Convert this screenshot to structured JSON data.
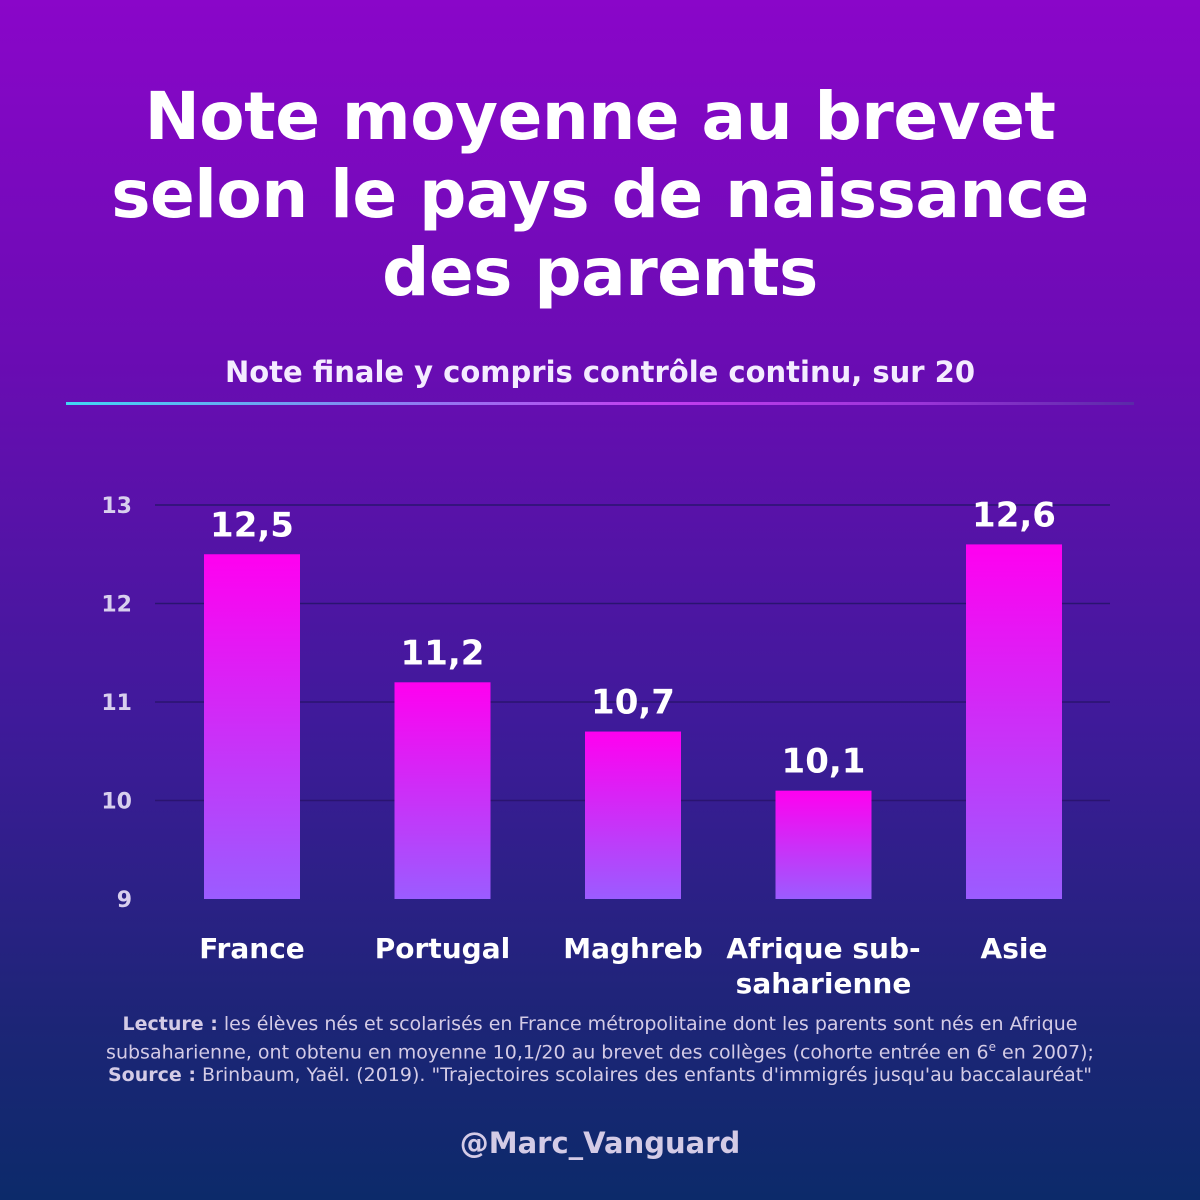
{
  "chart_data": {
    "type": "bar",
    "title": "Note moyenne au brevet selon le pays de naissance des parents",
    "title_lines": [
      "Note moyenne au brevet",
      "selon le pays de naissance",
      "des parents"
    ],
    "subtitle": "Note finale y compris contrôle continu, sur 20",
    "categories": [
      "France",
      "Portugal",
      "Maghreb",
      "Afrique sub-saharienne",
      "Asie"
    ],
    "category_lines": [
      [
        "France"
      ],
      [
        "Portugal"
      ],
      [
        "Maghreb"
      ],
      [
        "Afrique sub-",
        "saharienne"
      ],
      [
        "Asie"
      ]
    ],
    "values": [
      12.5,
      11.2,
      10.7,
      10.1,
      12.6
    ],
    "value_labels": [
      "12,5",
      "11,2",
      "10,7",
      "10,1",
      "12,6"
    ],
    "yticks": [
      9,
      10,
      11,
      12,
      13
    ],
    "ylim": [
      9,
      13
    ],
    "grid": true,
    "xlabel": "",
    "ylabel": ""
  },
  "colors": {
    "bar_top": "#ff00f0",
    "bar_bottom": "#9b5cff",
    "gridline": "#2a1470",
    "tick": "#d8cfee"
  },
  "footnote": {
    "lecture_label": "Lecture :",
    "lecture_text_1": " les élèves nés et scolarisés en France métropolitaine dont les parents sont nés en Afrique subsaharienne, ont obtenu en moyenne 10,1/20 au brevet des collèges (cohorte entrée en 6",
    "lecture_sup": "e",
    "lecture_text_2": " en 2007);",
    "source_label": "Source :",
    "source_text": " Brinbaum, Yaël. (2019). \"Trajectoires scolaires des enfants d'immigrés jusqu'au baccalauréat\""
  },
  "handle": "@Marc_Vanguard"
}
